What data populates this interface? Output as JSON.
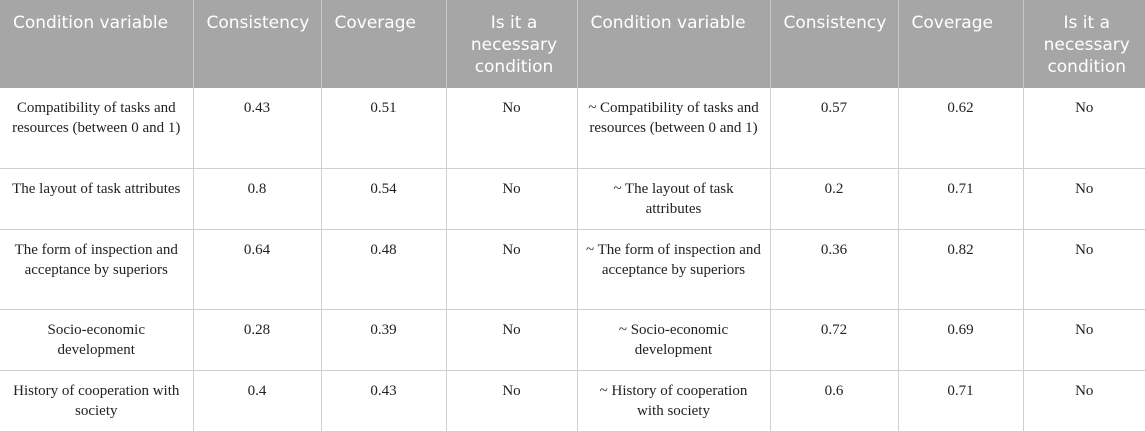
{
  "headers": {
    "left_condition": "Condition variable",
    "left_consistency": "Consistency",
    "left_coverage": "Coverage",
    "left_necessary": "Is it a necessary condition",
    "right_condition": "Condition variable",
    "right_consistency": "Consistency",
    "right_coverage": "Coverage",
    "right_necessary": "Is it a necessary condition"
  },
  "rows": [
    {
      "left_condition": "Compatibility of tasks and resources (between 0 and 1)",
      "left_consistency": "0.43",
      "left_coverage": "0.51",
      "left_necessary": "No",
      "right_condition": "~ Compatibility of tasks and resources (between 0 and 1)",
      "right_consistency": "0.57",
      "right_coverage": "0.62",
      "right_necessary": "No"
    },
    {
      "left_condition": "The layout of task attributes",
      "left_consistency": "0.8",
      "left_coverage": "0.54",
      "left_necessary": "No",
      "right_condition": "~ The layout of task attributes",
      "right_consistency": "0.2",
      "right_coverage": "0.71",
      "right_necessary": "No"
    },
    {
      "left_condition": "The form of inspection and acceptance by superiors",
      "left_consistency": "0.64",
      "left_coverage": "0.48",
      "left_necessary": "No",
      "right_condition": "~ The form of inspection and acceptance by superiors",
      "right_consistency": "0.36",
      "right_coverage": "0.82",
      "right_necessary": "No"
    },
    {
      "left_condition": "Socio-economic development",
      "left_consistency": "0.28",
      "left_coverage": "0.39",
      "left_necessary": "No",
      "right_condition": "~ Socio-economic development",
      "right_consistency": "0.72",
      "right_coverage": "0.69",
      "right_necessary": "No"
    },
    {
      "left_condition": "History of cooperation with society",
      "left_consistency": "0.4",
      "left_coverage": "0.43",
      "left_necessary": "No",
      "right_condition": "~ History of cooperation with society",
      "right_consistency": "0.6",
      "right_coverage": "0.71",
      "right_necessary": "No"
    }
  ]
}
